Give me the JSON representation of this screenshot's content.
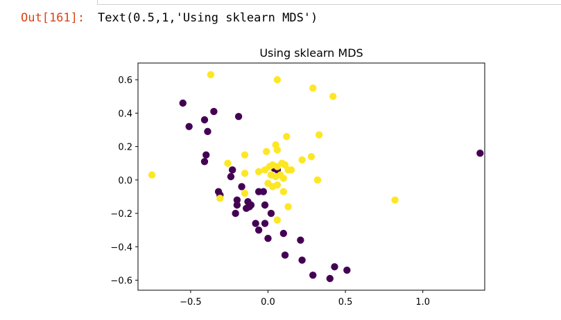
{
  "cell": {
    "prompt": "Out[161]:",
    "output_text": "Text(0.5,1,'Using sklearn MDS')"
  },
  "chart_data": {
    "type": "scatter",
    "title": "Using sklearn MDS",
    "xlabel": "",
    "ylabel": "",
    "xlim": [
      -0.84,
      1.4
    ],
    "ylim": [
      -0.66,
      0.7
    ],
    "xticks": [
      -0.5,
      0.0,
      0.5,
      1.0
    ],
    "xtick_labels": [
      "−0.5",
      "0.0",
      "0.5",
      "1.0"
    ],
    "yticks": [
      0.6,
      0.4,
      0.2,
      0.0,
      -0.2,
      -0.4,
      -0.6
    ],
    "ytick_labels": [
      "0.6",
      "0.4",
      "0.2",
      "0.0",
      "−0.2",
      "−0.4",
      "−0.6"
    ],
    "grid": false,
    "colors": {
      "class_0": "#440154",
      "class_1": "#fde725"
    },
    "series": [
      {
        "color_key": "class_0",
        "x": [
          -0.55,
          -0.51,
          -0.35,
          -0.41,
          -0.39,
          -0.19,
          -0.4,
          -0.41,
          -0.23,
          -0.24,
          -0.17,
          -0.32,
          -0.31,
          -0.2,
          -0.2,
          -0.21,
          -0.13,
          -0.12,
          -0.14,
          -0.11,
          -0.08,
          -0.06,
          -0.06,
          -0.03,
          -0.02,
          0.04,
          0.06,
          0.02,
          -0.02,
          0.0,
          0.1,
          0.11,
          0.21,
          0.22,
          0.29,
          0.4,
          0.43,
          0.51,
          1.37
        ],
        "y": [
          0.46,
          0.32,
          0.41,
          0.36,
          0.29,
          0.38,
          0.15,
          0.11,
          0.06,
          0.02,
          -0.04,
          -0.07,
          -0.09,
          -0.12,
          -0.15,
          -0.2,
          -0.13,
          -0.16,
          -0.17,
          -0.15,
          -0.26,
          -0.3,
          -0.07,
          -0.07,
          -0.15,
          0.07,
          0.06,
          -0.2,
          -0.26,
          -0.35,
          -0.32,
          -0.45,
          -0.36,
          -0.48,
          -0.57,
          -0.59,
          -0.52,
          -0.54,
          0.16
        ]
      },
      {
        "color_key": "class_1",
        "x": [
          -0.37,
          0.06,
          0.29,
          0.42,
          0.33,
          0.12,
          0.05,
          0.06,
          -0.01,
          -0.26,
          -0.15,
          0.22,
          0.28,
          -0.75,
          -0.15,
          -0.06,
          -0.02,
          0.01,
          0.03,
          0.06,
          0.09,
          0.11,
          0.13,
          0.15,
          0.02,
          0.05,
          0.08,
          0.1,
          0.0,
          0.03,
          0.06,
          0.1,
          -0.15,
          -0.31,
          0.06,
          0.13,
          0.32,
          0.82
        ],
        "y": [
          0.63,
          0.6,
          0.55,
          0.5,
          0.27,
          0.26,
          0.21,
          0.18,
          0.17,
          0.1,
          0.15,
          0.12,
          0.14,
          0.03,
          0.04,
          0.05,
          0.06,
          0.08,
          0.09,
          0.08,
          0.1,
          0.09,
          0.06,
          0.06,
          0.03,
          0.02,
          0.03,
          0.01,
          -0.02,
          -0.04,
          -0.03,
          -0.07,
          -0.08,
          -0.11,
          -0.24,
          -0.16,
          0.0,
          -0.12
        ]
      }
    ]
  }
}
